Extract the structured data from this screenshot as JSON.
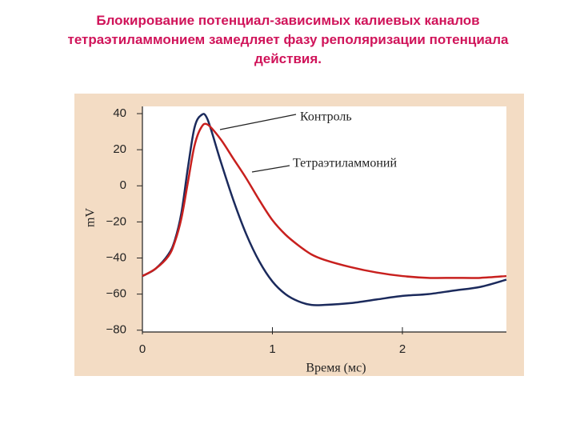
{
  "chart_data": {
    "type": "line",
    "title": "Блокирование потенциал-зависимых калиевых каналов тетраэтиламмонием замедляет фазу реполяризации потенциала действия.",
    "y_label": "mV",
    "x_label": "Время (мс)",
    "x": [
      0,
      0.1,
      0.2,
      0.25,
      0.3,
      0.35,
      0.4,
      0.45,
      0.5,
      0.6,
      0.7,
      0.8,
      0.9,
      1.0,
      1.1,
      1.2,
      1.3,
      1.4,
      1.6,
      1.8,
      2.0,
      2.2,
      2.4,
      2.6,
      2.8
    ],
    "series": [
      {
        "name": "Контроль",
        "color": "#1b2a5c",
        "values": [
          -50,
          -46,
          -38,
          -30,
          -15,
          10,
          32,
          39,
          37,
          14,
          -8,
          -27,
          -42,
          -53,
          -60,
          -64,
          -66,
          -66,
          -65,
          -63,
          -61,
          -60,
          -58,
          -56,
          -52
        ]
      },
      {
        "name": "Тетраэтиламмоний",
        "color": "#c8201e",
        "values": [
          -50,
          -46,
          -39,
          -31,
          -18,
          2,
          22,
          32,
          34,
          26,
          15,
          4,
          -8,
          -19,
          -27,
          -33,
          -38,
          -41,
          -45,
          -48,
          -50,
          -51,
          -51,
          -51,
          -50
        ]
      }
    ],
    "xlim": [
      0,
      2.8
    ],
    "ylim": [
      -81,
      44
    ],
    "xticks": [
      0,
      1,
      2
    ],
    "yticks": [
      40,
      20,
      0,
      {
        "value": -20,
        "label": "−20"
      },
      {
        "value": -40,
        "label": "−40"
      },
      {
        "value": -60,
        "label": "−60"
      },
      {
        "value": -80,
        "label": "−80"
      }
    ]
  }
}
